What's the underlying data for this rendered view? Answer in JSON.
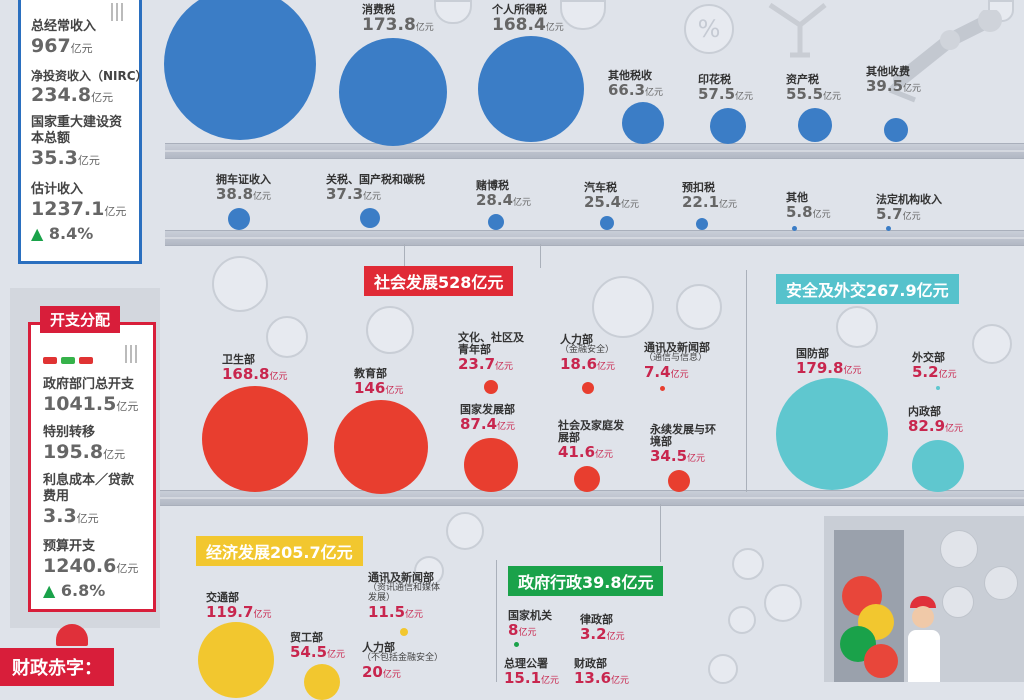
{
  "colors": {
    "revenue": "#3b7dc6",
    "social": "#e83e2f",
    "security": "#5fc7cf",
    "economy": "#f2c72f",
    "admin": "#1aa24a",
    "accent_red": "#c8264e"
  },
  "revenue_panel": {
    "items": [
      {
        "label": "总经常收入",
        "value": "967",
        "unit": "亿元"
      },
      {
        "label": "净投资收入（NIRC）",
        "value": "234.8",
        "unit": "亿元"
      },
      {
        "label": "国家重大建设资本总额",
        "value": "35.3",
        "unit": "亿元"
      },
      {
        "label": "估计收入",
        "value": "1237.1",
        "unit": "亿元"
      }
    ],
    "growth": "8.4%"
  },
  "revenue_row1": [
    {
      "name": "消费税",
      "value": "173.8",
      "unit": "亿元"
    },
    {
      "name": "个人所得税",
      "value": "168.4",
      "unit": "亿元"
    },
    {
      "name": "其他税收",
      "value": "66.3",
      "unit": "亿元"
    },
    {
      "name": "印花税",
      "value": "57.5",
      "unit": "亿元"
    },
    {
      "name": "资产税",
      "value": "55.5",
      "unit": "亿元"
    },
    {
      "name": "其他收费",
      "value": "39.5",
      "unit": "亿元"
    }
  ],
  "revenue_row2": [
    {
      "name": "拥车证收入",
      "value": "38.8",
      "unit": "亿元"
    },
    {
      "name": "关税、国产税和碳税",
      "value": "37.3",
      "unit": "亿元"
    },
    {
      "name": "赌博税",
      "value": "28.4",
      "unit": "亿元"
    },
    {
      "name": "汽车税",
      "value": "25.4",
      "unit": "亿元"
    },
    {
      "name": "预扣税",
      "value": "22.1",
      "unit": "亿元"
    },
    {
      "name": "其他",
      "value": "5.8",
      "unit": "亿元"
    },
    {
      "name": "法定机构收入",
      "value": "5.7",
      "unit": "亿元"
    }
  ],
  "expense_panel": {
    "title": "开支分配",
    "items": [
      {
        "label": "政府部门总开支",
        "value": "1041.5",
        "unit": "亿元"
      },
      {
        "label": "特别转移",
        "value": "195.8",
        "unit": "亿元"
      },
      {
        "label": "利息成本／贷款费用",
        "value": "3.3",
        "unit": "亿元"
      },
      {
        "label": "预算开支",
        "value": "1240.6",
        "unit": "亿元"
      }
    ],
    "growth": "6.8%"
  },
  "social": {
    "title": "社会发展528亿元",
    "items": [
      {
        "name": "卫生部",
        "sub": "",
        "value": "168.8",
        "unit": "亿元"
      },
      {
        "name": "教育部",
        "sub": "",
        "value": "146",
        "unit": "亿元"
      },
      {
        "name": "文化、社区及青年部",
        "sub": "",
        "value": "23.7",
        "unit": "亿元"
      },
      {
        "name": "人力部",
        "sub": "（金融安全）",
        "value": "18.6",
        "unit": "亿元"
      },
      {
        "name": "通讯及新闻部",
        "sub": "（通信与信息）",
        "value": "7.4",
        "unit": "亿元"
      },
      {
        "name": "国家发展部",
        "sub": "",
        "value": "87.4",
        "unit": "亿元"
      },
      {
        "name": "社会及家庭发展部",
        "sub": "",
        "value": "41.6",
        "unit": "亿元"
      },
      {
        "name": "永续发展与环境部",
        "sub": "",
        "value": "34.5",
        "unit": "亿元"
      }
    ]
  },
  "security": {
    "title": "安全及外交267.9亿元",
    "items": [
      {
        "name": "国防部",
        "value": "179.8",
        "unit": "亿元"
      },
      {
        "name": "外交部",
        "value": "5.2",
        "unit": "亿元"
      },
      {
        "name": "内政部",
        "value": "82.9",
        "unit": "亿元"
      }
    ]
  },
  "economy": {
    "title": "经济发展205.7亿元",
    "items": [
      {
        "name": "交通部",
        "sub": "",
        "value": "119.7",
        "unit": "亿元"
      },
      {
        "name": "通讯及新闻部",
        "sub": "（资讯通信和媒体发展）",
        "value": "11.5",
        "unit": "亿元"
      },
      {
        "name": "贸工部",
        "sub": "",
        "value": "54.5",
        "unit": "亿元"
      },
      {
        "name": "人力部",
        "sub": "（不包括金融安全）",
        "value": "20",
        "unit": "亿元"
      }
    ]
  },
  "admin": {
    "title": "政府行政39.8亿元",
    "items": [
      {
        "name": "国家机关",
        "value": "8",
        "unit": "亿元"
      },
      {
        "name": "律政部",
        "value": "3.2",
        "unit": "亿元"
      },
      {
        "name": "总理公署",
        "value": "15.1",
        "unit": "亿元"
      },
      {
        "name": "财政部",
        "value": "13.6",
        "unit": "亿元"
      }
    ]
  },
  "deficit_label": "财政赤字："
}
